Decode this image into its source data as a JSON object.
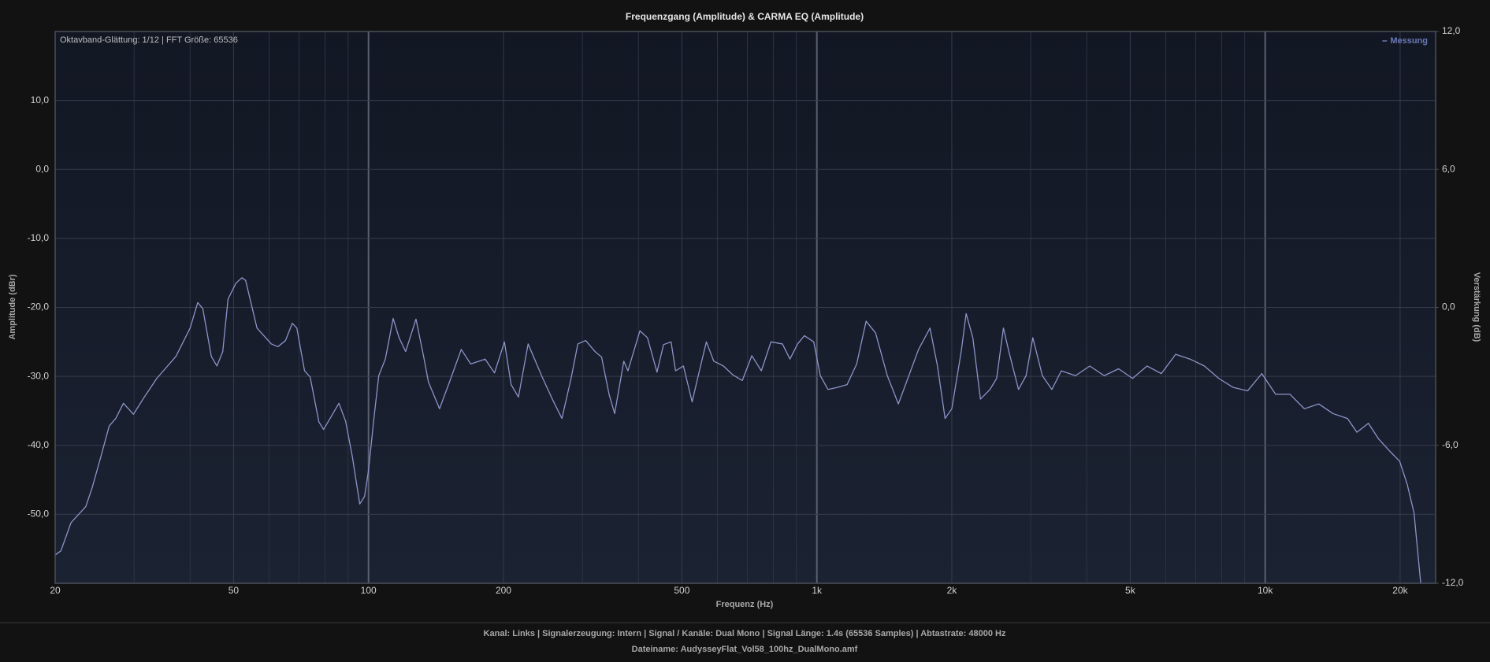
{
  "chart_data": {
    "type": "line",
    "title": "Frequenzgang (Amplitude) & CARMA EQ (Amplitude)",
    "annotation": "Oktavband-Glättung: 1/12 | FFT Größe: 65536",
    "x_label": "Frequenz (Hz)",
    "y_label": "Amplitude (dBr)",
    "y2_label": "Verstärkung (dB)",
    "notes": [
      "Kanal: Links  |  Signalerzeugung: Intern  |  Signal / Kanäle: Dual Mono  |  Signal Länge: 1.4s (65536 Samples)  |  Abtastrate: 48000 Hz",
      "Dateiname: AudysseyFlat_Vol58_100hz_DualMono.amf"
    ],
    "log_x": true,
    "grid": true,
    "legend": "top-right",
    "xlim": [
      20,
      24000
    ],
    "xticks": [
      20,
      50,
      100,
      200,
      500,
      {
        "value": 1000,
        "label": "1k"
      },
      {
        "value": 2000,
        "label": "2k"
      },
      {
        "value": 5000,
        "label": "5k"
      },
      {
        "value": 10000,
        "label": "10k"
      },
      {
        "value": 20000,
        "label": "20k"
      }
    ],
    "xminor": [
      30,
      40,
      60,
      70,
      80,
      90,
      300,
      400,
      600,
      700,
      800,
      900,
      3000,
      4000,
      6000,
      7000,
      8000,
      9000
    ],
    "ylim": [
      -60,
      20
    ],
    "yticks": [
      {
        "value": 10,
        "label": "10,0"
      },
      {
        "value": 0,
        "label": "0,0"
      },
      {
        "value": -10,
        "label": "-10,0"
      },
      {
        "value": -20,
        "label": "-20,0"
      },
      {
        "value": -30,
        "label": "-30,0"
      },
      {
        "value": -40,
        "label": "-40,0"
      },
      {
        "value": -50,
        "label": "-50,0"
      }
    ],
    "y2lim": [
      -12,
      12
    ],
    "y2ticks": [
      {
        "value": 12,
        "label": "12,0"
      },
      {
        "value": 6,
        "label": "6,0"
      },
      {
        "value": 0,
        "label": "0,0"
      },
      {
        "value": -6,
        "label": "-6,0"
      },
      {
        "value": -12,
        "label": "-12,0"
      }
    ],
    "x": [
      20,
      20.6,
      21.7,
      23.4,
      24.2,
      25.3,
      26.4,
      27.3,
      28.4,
      29.9,
      31.4,
      33.7,
      37.2,
      40,
      41.6,
      42.7,
      44.6,
      45.9,
      47.3,
      48.6,
      50.6,
      52.2,
      53.2,
      56.4,
      60.7,
      62.8,
      65.3,
      67.6,
      69.2,
      72,
      74.1,
      77.5,
      79.4,
      82.6,
      85.9,
      88.9,
      92,
      95.6,
      98,
      100,
      102.8,
      105.4,
      109,
      113.5,
      117,
      121,
      127.6,
      132.7,
      136,
      144,
      152,
      161,
      169,
      182,
      191,
      201,
      208,
      216,
      227,
      244,
      257,
      270,
      283,
      293,
      305,
      320,
      331,
      344,
      354,
      371,
      379,
      403,
      419,
      440,
      455,
      473,
      484,
      504,
      527,
      547,
      567,
      589,
      619,
      650,
      682,
      716,
      752,
      790,
      838,
      871,
      906,
      938,
      984,
      1018,
      1059,
      1112,
      1168,
      1227,
      1288,
      1352,
      1436,
      1520,
      1604,
      1686,
      1788,
      1858,
      1932,
      2000,
      2099,
      2153,
      2228,
      2317,
      2433,
      2518,
      2607,
      2681,
      2817,
      2929,
      3032,
      3184,
      3343,
      3510,
      3775,
      4063,
      4375,
      4710,
      5061,
      5449,
      5866,
      6315,
      6799,
      7320,
      7880,
      8484,
      9134,
      9830,
      10550,
      11360,
      12230,
      13170,
      14170,
      15260,
      16020,
      16990,
      17920,
      19000,
      19950,
      20750,
      21480,
      22230
    ],
    "series": [
      {
        "name": "Messung",
        "color": "#8c95c8",
        "legend_color": "#6b79b5",
        "values": [
          -55.9,
          -55.3,
          -51.2,
          -48.9,
          -46.1,
          -41.6,
          -37.2,
          -36.1,
          -33.9,
          -35.5,
          -33.3,
          -30.3,
          -27.1,
          -23,
          -19.3,
          -20.2,
          -27.1,
          -28.5,
          -26.4,
          -18.8,
          -16.5,
          -15.7,
          -16.1,
          -23,
          -25.3,
          -25.7,
          -24.8,
          -22.3,
          -23,
          -29.2,
          -30.1,
          -36.6,
          -37.7,
          -35.8,
          -33.9,
          -36.5,
          -41.6,
          -48.5,
          -47.4,
          -43.6,
          -36.1,
          -29.9,
          -27.5,
          -21.6,
          -24.4,
          -26.4,
          -21.7,
          -27.1,
          -30.8,
          -34.7,
          -30.6,
          -26.1,
          -28.2,
          -27.5,
          -29.5,
          -25,
          -31.2,
          -33,
          -25.3,
          -30.1,
          -33.3,
          -36.1,
          -30.3,
          -25.3,
          -24.8,
          -26.4,
          -27.2,
          -32.6,
          -35.4,
          -27.8,
          -29.2,
          -23.4,
          -24.4,
          -29.4,
          -25.4,
          -25,
          -29.2,
          -28.5,
          -33.7,
          -29.2,
          -25,
          -27.8,
          -28.5,
          -29.8,
          -30.6,
          -27,
          -29.2,
          -25,
          -25.3,
          -27.5,
          -25.3,
          -24.1,
          -25,
          -29.9,
          -31.9,
          -31.6,
          -31.2,
          -28.2,
          -22,
          -23.7,
          -29.9,
          -34,
          -29.9,
          -26.1,
          -23,
          -28.5,
          -36.1,
          -34.7,
          -26.4,
          -20.9,
          -24.4,
          -33.3,
          -31.9,
          -30.3,
          -23,
          -26.4,
          -31.9,
          -29.9,
          -24.4,
          -29.9,
          -31.9,
          -29.2,
          -29.9,
          -28.5,
          -29.9,
          -28.9,
          -30.3,
          -28.5,
          -29.6,
          -26.8,
          -27.5,
          -28.5,
          -30.3,
          -31.6,
          -32.1,
          -29.6,
          -32.6,
          -32.6,
          -34.7,
          -34,
          -35.4,
          -36.1,
          -38.1,
          -36.8,
          -39.1,
          -40.9,
          -42.3,
          -45.7,
          -49.8,
          -60
        ]
      }
    ]
  }
}
